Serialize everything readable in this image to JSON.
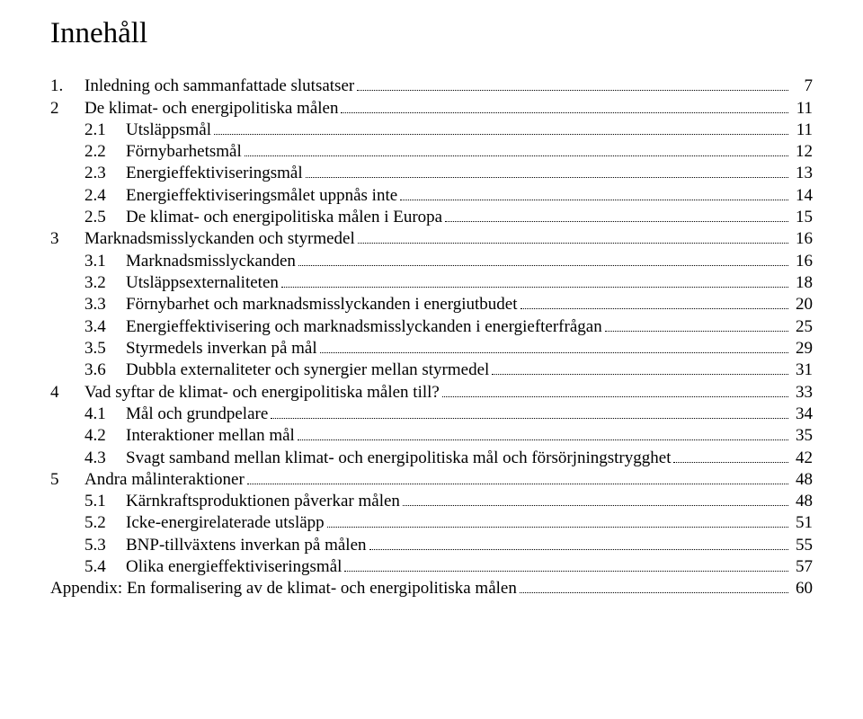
{
  "title": "Innehåll",
  "toc": [
    {
      "level": 1,
      "num": "1.",
      "label": "Inledning och sammanfattade slutsatser",
      "page": "7"
    },
    {
      "level": 1,
      "num": "2",
      "label": "De klimat- och energipolitiska målen",
      "page": "11"
    },
    {
      "level": 2,
      "num": "2.1",
      "label": "Utsläppsmål",
      "page": "11"
    },
    {
      "level": 2,
      "num": "2.2",
      "label": "Förnybarhetsmål",
      "page": "12"
    },
    {
      "level": 2,
      "num": "2.3",
      "label": "Energieffektiviseringsmål",
      "page": "13"
    },
    {
      "level": 2,
      "num": "2.4",
      "label": "Energieffektiviseringsmålet uppnås inte",
      "page": "14"
    },
    {
      "level": 2,
      "num": "2.5",
      "label": "De klimat- och energipolitiska målen i Europa",
      "page": "15"
    },
    {
      "level": 1,
      "num": "3",
      "label": "Marknadsmisslyckanden och styrmedel",
      "page": "16"
    },
    {
      "level": 2,
      "num": "3.1",
      "label": "Marknadsmisslyckanden",
      "page": "16"
    },
    {
      "level": 2,
      "num": "3.2",
      "label": "Utsläppsexternaliteten",
      "page": "18"
    },
    {
      "level": 2,
      "num": "3.3",
      "label": "Förnybarhet och marknadsmisslyckanden i energiutbudet",
      "page": "20"
    },
    {
      "level": 2,
      "num": "3.4",
      "label": "Energieffektivisering och marknadsmisslyckanden i energiefterfrågan",
      "page": "25"
    },
    {
      "level": 2,
      "num": "3.5",
      "label": "Styrmedels inverkan på mål",
      "page": "29"
    },
    {
      "level": 2,
      "num": "3.6",
      "label": "Dubbla externaliteter och synergier mellan styrmedel",
      "page": "31"
    },
    {
      "level": 1,
      "num": "4",
      "label": "Vad syftar de klimat- och energipolitiska målen till?",
      "page": "33"
    },
    {
      "level": 2,
      "num": "4.1",
      "label": "Mål och grundpelare",
      "page": "34"
    },
    {
      "level": 2,
      "num": "4.2",
      "label": "Interaktioner mellan mål",
      "page": "35"
    },
    {
      "level": 2,
      "num": "4.3",
      "label": "Svagt samband mellan klimat- och energipolitiska mål och försörjningstrygghet",
      "page": "42"
    },
    {
      "level": 1,
      "num": "5",
      "label": "Andra målinteraktioner",
      "page": "48"
    },
    {
      "level": 2,
      "num": "5.1",
      "label": "Kärnkraftsproduktionen påverkar målen",
      "page": "48"
    },
    {
      "level": 2,
      "num": "5.2",
      "label": "Icke-energirelaterade utsläpp",
      "page": "51"
    },
    {
      "level": 2,
      "num": "5.3",
      "label": "BNP-tillväxtens inverkan på målen",
      "page": "55"
    },
    {
      "level": 2,
      "num": "5.4",
      "label": "Olika energieffektiviseringsmål",
      "page": "57"
    },
    {
      "level": 0,
      "num": "",
      "label": "Appendix: En formalisering av de klimat- och energipolitiska målen",
      "page": "60"
    }
  ]
}
